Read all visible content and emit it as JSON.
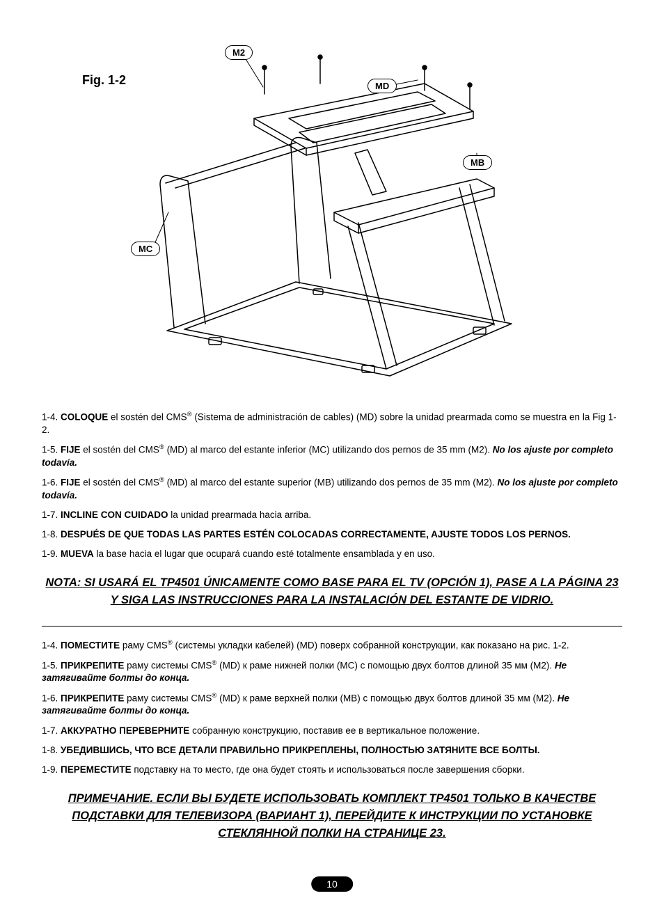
{
  "figure": {
    "title": "Fig. 1-2",
    "labels": {
      "m2": "M2",
      "md": "MD",
      "mb": "MB",
      "mc": "MC"
    },
    "diagram": {
      "stroke": "#000000",
      "stroke_width": 1.5,
      "background": "#ffffff"
    }
  },
  "spanish": {
    "steps": [
      {
        "num": "1-4.",
        "lead": "COLOQUE",
        "body": " el sostén del CMS",
        "sup": "®",
        "rest": " (Sistema de administración de cables) (MD) sobre la unidad prearmada como se muestra en la Fig 1-2."
      },
      {
        "num": "1-5.",
        "lead": "FIJE",
        "body": " el sostén del CMS",
        "sup": "®",
        "rest": " (MD) al marco del estante inferior (MC) utilizando dos pernos de 35 mm (M2). ",
        "tail_bold_italic": "No los ajuste por completo todavía."
      },
      {
        "num": "1-6.",
        "lead": "FIJE",
        "body": " el sostén del CMS",
        "sup": "®",
        "rest": " (MD) al marco del estante superior (MB) utilizando dos pernos de 35 mm (M2). ",
        "tail_bold_italic": "No los ajuste por completo todavía."
      },
      {
        "num": "1-7.",
        "lead": "INCLINE CON CUIDADO",
        "body": " la unidad prearmada hacia arriba.",
        "sup": "",
        "rest": ""
      },
      {
        "num": "1-8.",
        "lead": "DESPUÉS DE QUE TODAS LAS PARTES ESTÉN COLOCADAS CORRECTAMENTE, AJUSTE TODOS LOS PERNOS.",
        "body": "",
        "sup": "",
        "rest": ""
      },
      {
        "num": "1-9.",
        "lead": "MUEVA",
        "body": " la base hacia el lugar que ocupará cuando esté totalmente ensamblada y en uso.",
        "sup": "",
        "rest": ""
      }
    ],
    "note": "NOTA: SI USARÁ EL TP4501 ÚNICAMENTE COMO BASE PARA EL TV (OPCIÓN 1), PASE A LA PÁGINA 23 Y SIGA LAS INSTRUCCIONES PARA LA INSTALACIÓN DEL ESTANTE DE VIDRIO."
  },
  "russian": {
    "steps": [
      {
        "num": "1-4.",
        "lead": "ПОМЕСТИТЕ",
        "body": " раму CMS",
        "sup": "®",
        "rest": " (системы укладки кабелей) (MD) поверх собранной конструкции, как показано на рис. 1-2."
      },
      {
        "num": "1-5.",
        "lead": "ПРИКРЕПИТЕ",
        "body": " раму системы CMS",
        "sup": "®",
        "rest": " (MD) к раме нижней полки (MC) с помощью двух болтов длиной 35 мм (M2). ",
        "tail_bold_italic": "Не затягивайте болты до конца."
      },
      {
        "num": "1-6.",
        "lead": "ПРИКРЕПИТЕ",
        "body": " раму системы CMS",
        "sup": "®",
        "rest": " (MD) к раме верхней полки (MB) с помощью двух болтов длиной 35 мм (M2). ",
        "tail_bold_italic": "Не затягивайте болты до конца."
      },
      {
        "num": "1-7.",
        "lead": "АККУРАТНО ПЕРЕВЕРНИТЕ",
        "body": " собранную конструкцию, поставив ее в вертикальное положение.",
        "sup": "",
        "rest": ""
      },
      {
        "num": "1-8.",
        "lead": "УБЕДИВШИСЬ, ЧТО ВСЕ ДЕТАЛИ ПРАВИЛЬНО ПРИКРЕПЛЕНЫ, ПОЛНОСТЬЮ ЗАТЯНИТЕ ВСЕ БОЛТЫ.",
        "body": "",
        "sup": "",
        "rest": ""
      },
      {
        "num": "1-9.",
        "lead": "ПЕРЕМЕСТИТЕ",
        "body": " подставку на то место, где она будет стоять и использоваться после завершения сборки.",
        "sup": "",
        "rest": ""
      }
    ],
    "note": "ПРИМЕЧАНИЕ. ЕСЛИ ВЫ БУДЕТЕ ИСПОЛЬЗОВАТЬ КОМПЛЕКТ TP4501 ТОЛЬКО В КАЧЕСТВЕ ПОДСТАВКИ ДЛЯ ТЕЛЕВИЗОРА (ВАРИАНТ 1), ПЕРЕЙДИТЕ К ИНСТРУКЦИИ ПО УСТАНОВКЕ СТЕКЛЯННОЙ ПОЛКИ НА СТРАНИЦЕ 23."
  },
  "page_number": "10"
}
